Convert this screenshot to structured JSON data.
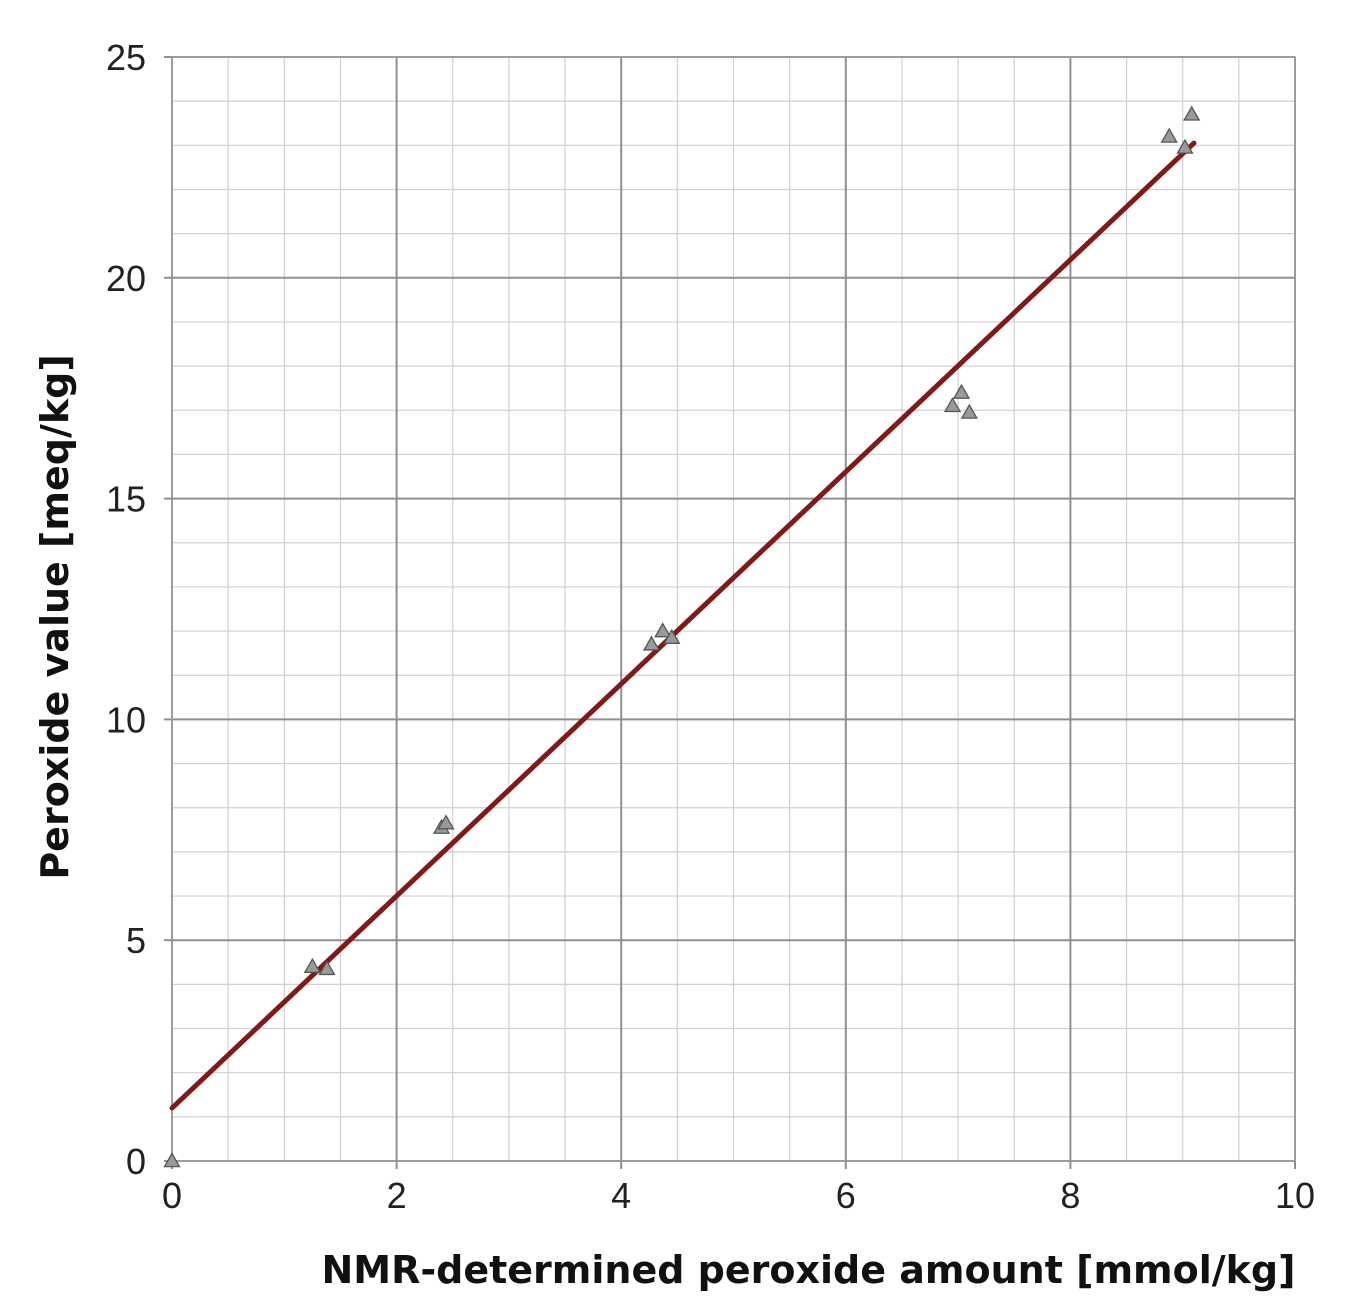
{
  "chart_data": {
    "type": "scatter",
    "title": "",
    "xlabel": "NMR-determined peroxide amount  [mmol/kg]",
    "ylabel": "Peroxide value [meq/kg]",
    "xlim": [
      0,
      10
    ],
    "ylim": [
      0,
      25
    ],
    "x_ticks": [
      "0",
      "2",
      "4",
      "6",
      "8",
      "10"
    ],
    "y_ticks": [
      "0",
      "5",
      "10",
      "15",
      "20",
      "25"
    ],
    "x_tick_values": [
      0,
      2,
      4,
      6,
      8,
      10
    ],
    "y_tick_values": [
      0,
      5,
      10,
      15,
      20,
      25
    ],
    "x_minor_step": 0.5,
    "y_minor_step": 1,
    "grid": true,
    "legend": "none",
    "series": [
      {
        "marker": "triangle",
        "color": "#999999",
        "points": [
          {
            "x": 0.0,
            "y": 0.0
          },
          {
            "x": 1.25,
            "y": 4.4
          },
          {
            "x": 1.38,
            "y": 4.35
          },
          {
            "x": 2.4,
            "y": 7.55
          },
          {
            "x": 2.44,
            "y": 7.65
          },
          {
            "x": 4.27,
            "y": 11.7
          },
          {
            "x": 4.37,
            "y": 12.0
          },
          {
            "x": 4.45,
            "y": 11.85
          },
          {
            "x": 6.95,
            "y": 17.1
          },
          {
            "x": 7.03,
            "y": 17.4
          },
          {
            "x": 7.1,
            "y": 16.95
          },
          {
            "x": 8.88,
            "y": 23.2
          },
          {
            "x": 9.02,
            "y": 22.95
          },
          {
            "x": 9.08,
            "y": 23.7
          }
        ]
      }
    ],
    "fit_line": {
      "color": "#7f1a16",
      "x": [
        0.0,
        9.1
      ],
      "y": [
        1.2,
        23.05
      ]
    }
  }
}
